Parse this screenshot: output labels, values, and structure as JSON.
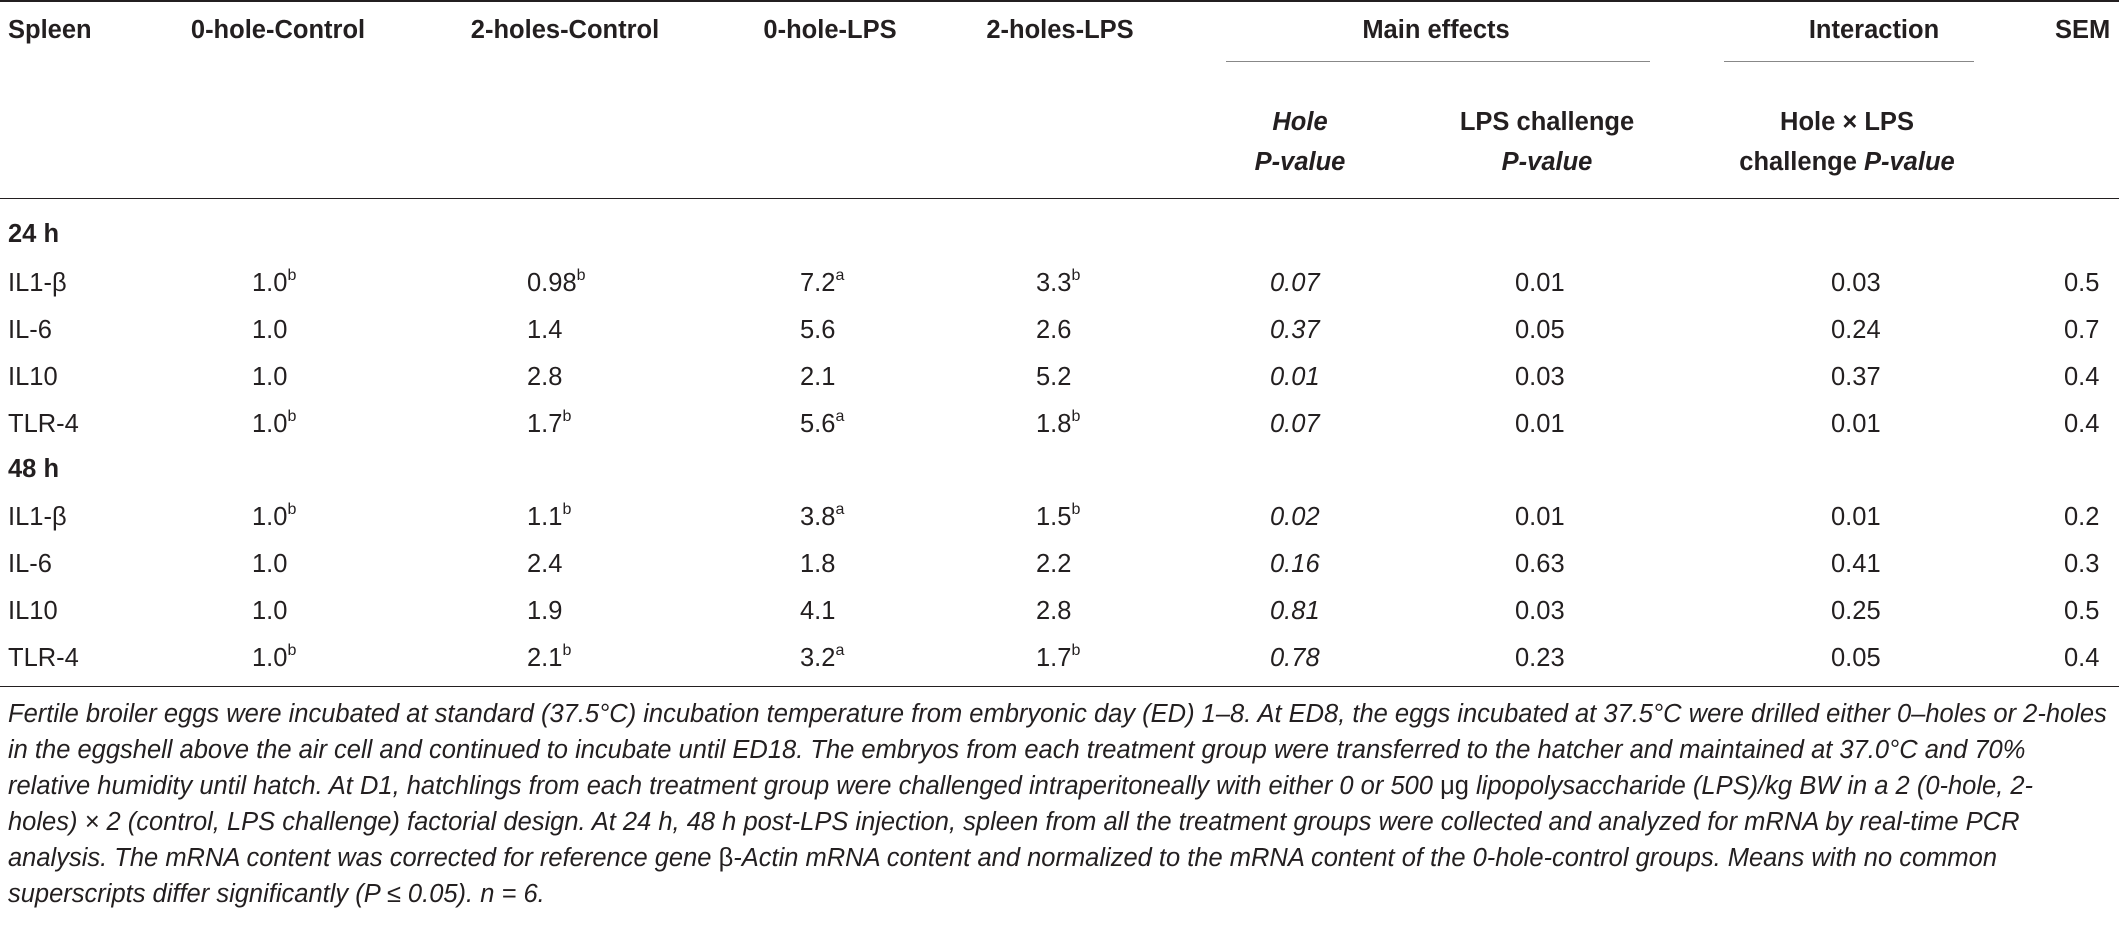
{
  "header": {
    "col0": "Spleen",
    "col1": "0-hole-Control",
    "col2": "2-holes-Control",
    "col3": "0-hole-LPS",
    "col4": "2-holes-LPS",
    "main_effects": "Main effects",
    "interaction": "Interaction",
    "sem": "SEM",
    "hole_line1": "Hole",
    "hole_line2": "P-value",
    "lps_line1": "LPS challenge",
    "lps_line2": "P-value",
    "inter_line1": "Hole × LPS",
    "inter_line2a": "challenge ",
    "inter_line2b": "P-value"
  },
  "sections": [
    {
      "label": "24 h",
      "rows": [
        {
          "name": "IL1-β",
          "v1": "1.0",
          "s1": "b",
          "v2": "0.98",
          "s2": "b",
          "v3": "7.2",
          "s3": "a",
          "v4": "3.3",
          "s4": "b",
          "hole": "0.07",
          "lps": "0.01",
          "inter": "0.03",
          "sem": "0.5"
        },
        {
          "name": "IL-6",
          "v1": "1.0",
          "s1": "",
          "v2": "1.4",
          "s2": "",
          "v3": "5.6",
          "s3": "",
          "v4": "2.6",
          "s4": "",
          "hole": "0.37",
          "lps": "0.05",
          "inter": "0.24",
          "sem": "0.7"
        },
        {
          "name": "IL10",
          "v1": "1.0",
          "s1": "",
          "v2": "2.8",
          "s2": "",
          "v3": "2.1",
          "s3": "",
          "v4": "5.2",
          "s4": "",
          "hole": "0.01",
          "lps": "0.03",
          "inter": "0.37",
          "sem": "0.4"
        },
        {
          "name": "TLR-4",
          "v1": "1.0",
          "s1": "b",
          "v2": "1.7",
          "s2": "b",
          "v3": "5.6",
          "s3": "a",
          "v4": "1.8",
          "s4": "b",
          "hole": "0.07",
          "lps": "0.01",
          "inter": "0.01",
          "sem": "0.4"
        }
      ]
    },
    {
      "label": "48 h",
      "rows": [
        {
          "name": "IL1-β",
          "v1": "1.0",
          "s1": "b",
          "v2": "1.1",
          "s2": "b",
          "v3": "3.8",
          "s3": "a",
          "v4": "1.5",
          "s4": "b",
          "hole": "0.02",
          "lps": "0.01",
          "inter": "0.01",
          "sem": "0.2"
        },
        {
          "name": "IL-6",
          "v1": "1.0",
          "s1": "",
          "v2": "2.4",
          "s2": "",
          "v3": "1.8",
          "s3": "",
          "v4": "2.2",
          "s4": "",
          "hole": "0.16",
          "lps": "0.63",
          "inter": "0.41",
          "sem": "0.3"
        },
        {
          "name": "IL10",
          "v1": "1.0",
          "s1": "",
          "v2": "1.9",
          "s2": "",
          "v3": "4.1",
          "s3": "",
          "v4": "2.8",
          "s4": "",
          "hole": "0.81",
          "lps": "0.03",
          "inter": "0.25",
          "sem": "0.5"
        },
        {
          "name": "TLR-4",
          "v1": "1.0",
          "s1": "b",
          "v2": "2.1",
          "s2": "b",
          "v3": "3.2",
          "s3": "a",
          "v4": "1.7",
          "s4": "b",
          "hole": "0.78",
          "lps": "0.23",
          "inter": "0.05",
          "sem": "0.4"
        }
      ]
    }
  ],
  "footnote": {
    "part1": "Fertile broiler eggs were incubated at standard (37.5°C) incubation temperature from embryonic day (ED) 1–8. At ED8, the eggs incubated at 37.5°C were drilled either 0–holes or 2-holes in the eggshell above the air cell and continued to incubate until ED18. The embryos from each treatment group were transferred to the hatcher and maintained at 37.0°C and 70% relative humidity until hatch. At D1, hatchlings from each treatment group were challenged intraperitoneally with either 0 or 500 ",
    "mu": "μg",
    "part2": " lipopolysaccharide (LPS)/kg BW in a 2 (0-hole, 2- holes) × 2 (control, LPS challenge) factorial design. At 24 h, 48 h post-LPS injection, spleen from all the treatment groups were collected and analyzed for mRNA by real-time PCR analysis. The mRNA content was corrected for reference gene ",
    "beta": "β",
    "part3": "-Actin mRNA content and normalized to the mRNA content of the 0-hole-control groups. Means with no common superscripts differ significantly (P ≤ 0.05). n = 6."
  }
}
